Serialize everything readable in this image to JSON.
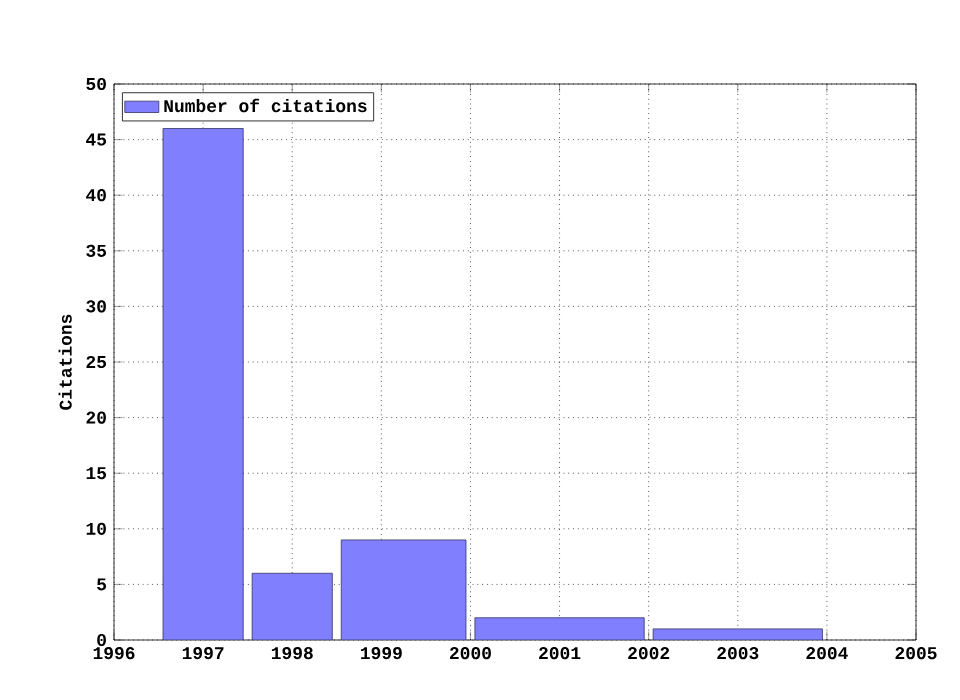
{
  "chart_data": {
    "type": "histogram",
    "ylabel": "Citations",
    "bins": [
      1996.5,
      1997.5,
      1998.5,
      2000,
      2002,
      2004
    ],
    "series": [
      {
        "name": "Number of citations",
        "color": "#8080ff",
        "values": [
          46,
          6,
          9,
          2,
          1
        ]
      }
    ],
    "xlim": [
      1996,
      2005
    ],
    "ylim": [
      0,
      50
    ],
    "xticks": [
      1996,
      1997,
      1998,
      1999,
      2000,
      2001,
      2002,
      2003,
      2004,
      2005
    ],
    "yticks": [
      0,
      5,
      10,
      15,
      20,
      25,
      30,
      35,
      40,
      45,
      50
    ],
    "grid": true,
    "legend": "top left"
  }
}
